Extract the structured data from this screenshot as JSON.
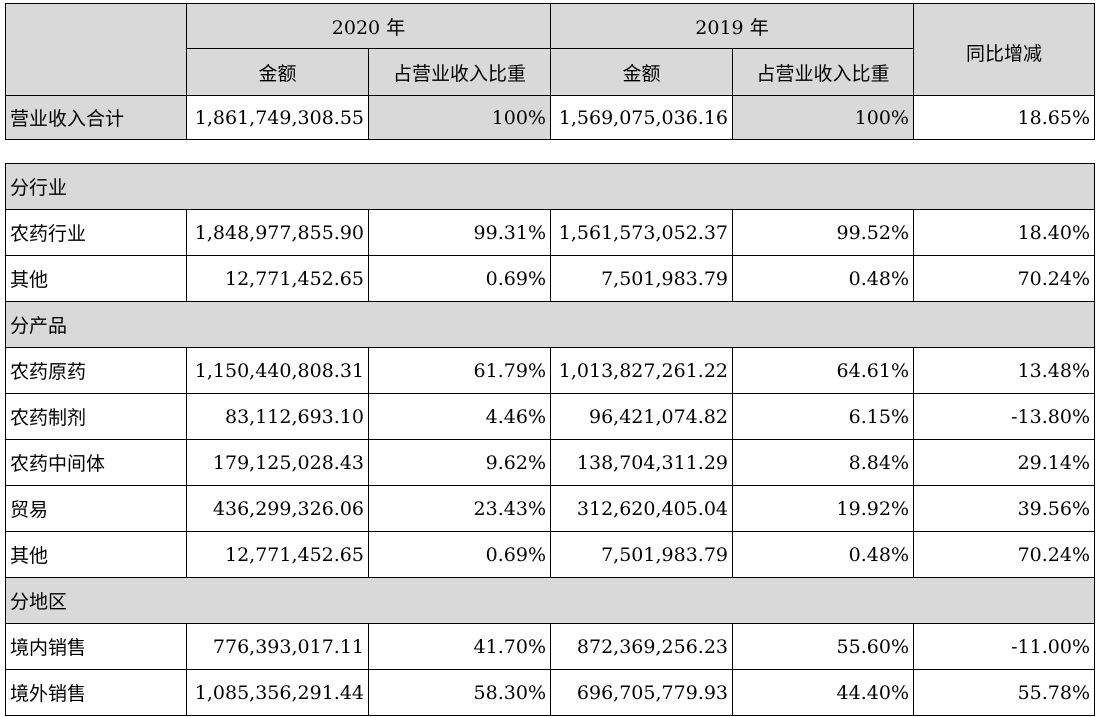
{
  "header": {
    "year_2020": "2020 年",
    "year_2019": "2019 年",
    "amount": "金额",
    "ratio": "占营业收入比重",
    "yoy": "同比增减"
  },
  "total": {
    "label": "营业收入合计",
    "amt2020": "1,861,749,308.55",
    "pct2020": "100%",
    "amt2019": "1,569,075,036.16",
    "pct2019": "100%",
    "yoy": "18.65%"
  },
  "sections": {
    "industry": "分行业",
    "product": "分产品",
    "region": "分地区"
  },
  "rows": [
    {
      "label": "农药行业",
      "amt2020": "1,848,977,855.90",
      "pct2020": "99.31%",
      "amt2019": "1,561,573,052.37",
      "pct2019": "99.52%",
      "yoy": "18.40%"
    },
    {
      "label": "其他",
      "amt2020": "12,771,452.65",
      "pct2020": "0.69%",
      "amt2019": "7,501,983.79",
      "pct2019": "0.48%",
      "yoy": "70.24%"
    },
    {
      "label": "农药原药",
      "amt2020": "1,150,440,808.31",
      "pct2020": "61.79%",
      "amt2019": "1,013,827,261.22",
      "pct2019": "64.61%",
      "yoy": "13.48%"
    },
    {
      "label": "农药制剂",
      "amt2020": "83,112,693.10",
      "pct2020": "4.46%",
      "amt2019": "96,421,074.82",
      "pct2019": "6.15%",
      "yoy": "-13.80%"
    },
    {
      "label": "农药中间体",
      "amt2020": "179,125,028.43",
      "pct2020": "9.62%",
      "amt2019": "138,704,311.29",
      "pct2019": "8.84%",
      "yoy": "29.14%"
    },
    {
      "label": "贸易",
      "amt2020": "436,299,326.06",
      "pct2020": "23.43%",
      "amt2019": "312,620,405.04",
      "pct2019": "19.92%",
      "yoy": "39.56%"
    },
    {
      "label": "其他",
      "amt2020": "12,771,452.65",
      "pct2020": "0.69%",
      "amt2019": "7,501,983.79",
      "pct2019": "0.48%",
      "yoy": "70.24%"
    },
    {
      "label": "境内销售",
      "amt2020": "776,393,017.11",
      "pct2020": "41.70%",
      "amt2019": "872,369,256.23",
      "pct2019": "55.60%",
      "yoy": "-11.00%"
    },
    {
      "label": "境外销售",
      "amt2020": "1,085,356,291.44",
      "pct2020": "58.30%",
      "amt2019": "696,705,779.93",
      "pct2019": "44.40%",
      "yoy": "55.78%"
    }
  ]
}
